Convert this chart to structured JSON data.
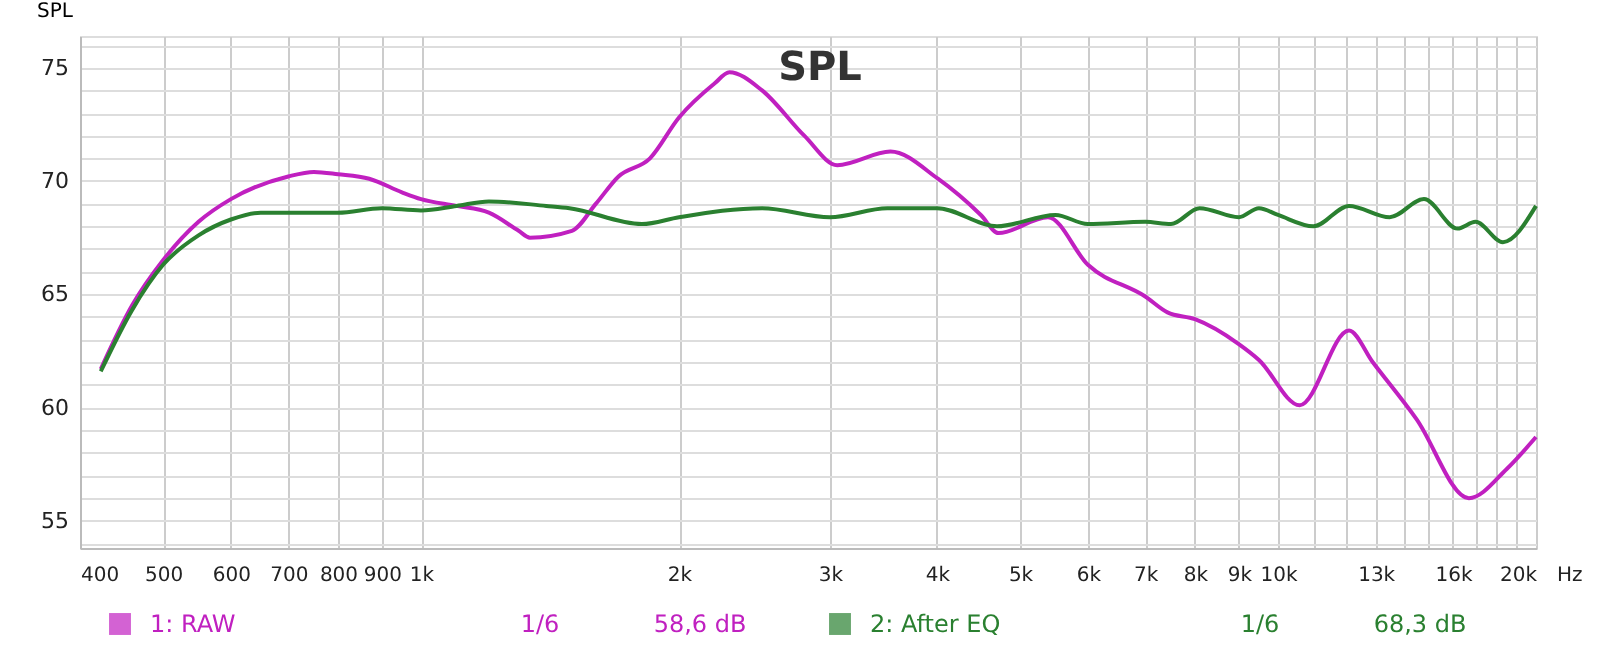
{
  "chart_data": {
    "type": "line",
    "title": "SPL",
    "ylabel": "SPL",
    "xlim": [
      400,
      20000
    ],
    "ylim": [
      53.8,
      76.4
    ],
    "log": "x",
    "grid": true,
    "legend": "bottom",
    "line_style": "solid",
    "marker": "none",
    "xticks": [
      400,
      500,
      600,
      700,
      800,
      900,
      {
        "value": 1000,
        "label": "1k"
      },
      {
        "value": 2000,
        "label": "2k"
      },
      {
        "value": 3000,
        "label": "3k"
      },
      {
        "value": 4000,
        "label": "4k"
      },
      {
        "value": 5000,
        "label": "5k"
      },
      {
        "value": 6000,
        "label": "6k"
      },
      {
        "value": 7000,
        "label": "7k"
      },
      {
        "value": 8000,
        "label": "8k"
      },
      {
        "value": 9000,
        "label": "9k"
      },
      {
        "value": 10000,
        "label": "10k"
      },
      {
        "value": 11000,
        "label": null
      },
      {
        "value": 12000,
        "label": null
      },
      {
        "value": 13000,
        "label": "13k"
      },
      {
        "value": 14000,
        "label": null
      },
      {
        "value": 15000,
        "label": null
      },
      {
        "value": 16000,
        "label": "16k"
      },
      {
        "value": 17000,
        "label": null
      },
      {
        "value": 18000,
        "label": null
      },
      {
        "value": 19000,
        "label": null
      },
      {
        "value": 20000,
        "label": "20k"
      }
    ],
    "xlabel": "Hz",
    "yticks": [
      {
        "value": 54,
        "label": null
      },
      55,
      {
        "value": 56,
        "label": null
      },
      {
        "value": 57,
        "label": null
      },
      {
        "value": 58,
        "label": null
      },
      {
        "value": 59,
        "label": null
      },
      60,
      {
        "value": 61,
        "label": null
      },
      {
        "value": 62,
        "label": null
      },
      {
        "value": 63,
        "label": null
      },
      {
        "value": 64,
        "label": null
      },
      65,
      {
        "value": 66,
        "label": null
      },
      {
        "value": 67,
        "label": null
      },
      {
        "value": 68,
        "label": null
      },
      {
        "value": 69,
        "label": null
      },
      70,
      {
        "value": 71,
        "label": null
      },
      {
        "value": 72,
        "label": null
      },
      {
        "value": 73,
        "label": null
      },
      {
        "value": 74,
        "label": null
      },
      75,
      {
        "value": 76,
        "label": null
      }
    ],
    "annotations": [
      "1/6",
      "58,6 dB",
      "1/6",
      "68,3 dB"
    ],
    "series": [
      {
        "name": "1: RAW",
        "color": "#c020c0",
        "x": [
          423,
          460,
          500,
          550,
          600,
          700,
          750,
          800,
          870,
          950,
          1000,
          1100,
          1200,
          1300,
          1340,
          1500,
          1600,
          1700,
          1850,
          2000,
          2200,
          2290,
          2500,
          2800,
          3060,
          3530,
          4010,
          4500,
          4720,
          5390,
          6000,
          7000,
          7430,
          8000,
          9000,
          9500,
          10600,
          12100,
          12900,
          14500,
          16700,
          18500,
          20000
        ],
        "values": [
          61.7,
          64.5,
          66.5,
          68.2,
          69.2,
          70.2,
          70.4,
          70.3,
          70.1,
          69.5,
          69.2,
          68.9,
          68.6,
          67.8,
          67.5,
          67.8,
          69.0,
          70.2,
          71.0,
          72.8,
          74.3,
          74.8,
          74.0,
          72.0,
          70.7,
          71.3,
          70.1,
          68.5,
          67.7,
          68.4,
          66.3,
          64.9,
          64.2,
          63.9,
          62.8,
          62.1,
          60.1,
          63.4,
          62.0,
          59.5,
          56.0,
          57.3,
          58.7
        ]
      },
      {
        "name": "2: After EQ",
        "color": "#2a8030",
        "x": [
          423,
          460,
          500,
          550,
          600,
          650,
          750,
          800,
          900,
          1000,
          1100,
          1200,
          1400,
          1490,
          1810,
          2000,
          2500,
          3000,
          3500,
          4000,
          4700,
          5500,
          6000,
          7000,
          7500,
          8100,
          9000,
          9500,
          10000,
          11000,
          12100,
          13500,
          14800,
          16200,
          17000,
          18300,
          20000
        ],
        "values": [
          61.6,
          64.3,
          66.3,
          67.6,
          68.3,
          68.6,
          68.6,
          68.6,
          68.8,
          68.7,
          68.9,
          69.1,
          68.9,
          68.8,
          68.1,
          68.4,
          68.8,
          68.4,
          68.8,
          68.8,
          68.0,
          68.5,
          68.1,
          68.2,
          68.1,
          68.8,
          68.4,
          68.8,
          68.5,
          68.0,
          68.9,
          68.4,
          69.2,
          67.9,
          68.2,
          67.3,
          68.9
        ]
      }
    ]
  }
}
